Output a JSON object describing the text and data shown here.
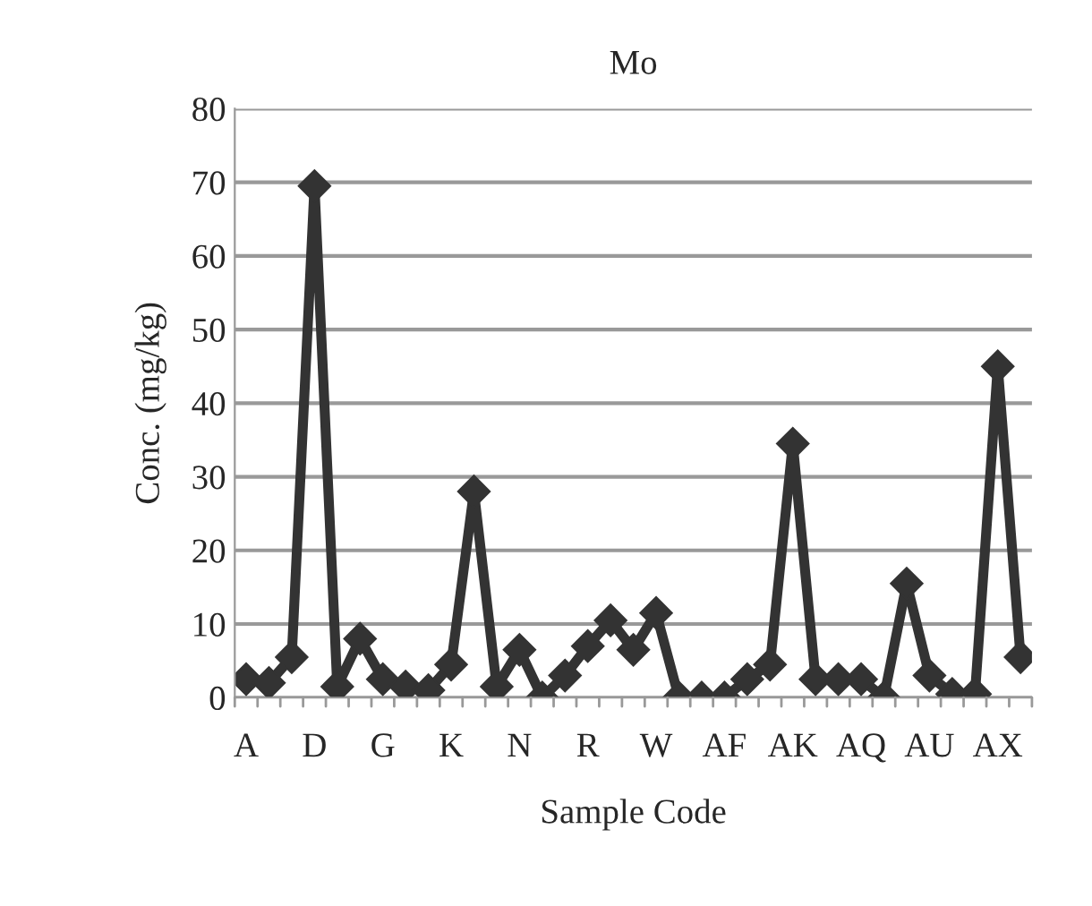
{
  "chart_data": {
    "type": "line",
    "title": "Mo",
    "xlabel": "Sample Code",
    "ylabel": "Conc. (mg/kg)",
    "categories": [
      "A",
      null,
      null,
      "D",
      null,
      null,
      "G",
      null,
      null,
      "K",
      null,
      null,
      "N",
      null,
      null,
      "R",
      null,
      null,
      "W",
      null,
      null,
      "AF",
      null,
      null,
      "AK",
      null,
      null,
      "AQ",
      null,
      null,
      "AU",
      null,
      null,
      "AX",
      null
    ],
    "series": [
      {
        "color": "#333333",
        "values": [
          2.5,
          2,
          5.5,
          69.5,
          1.5,
          8,
          2.5,
          1.5,
          1,
          4.5,
          28,
          1.5,
          6.5,
          0,
          3,
          7,
          10.5,
          6.5,
          11.5,
          0,
          0,
          0,
          2.5,
          4.5,
          34.5,
          2.5,
          2.5,
          2.5,
          0,
          15.5,
          3,
          0.5,
          0.5,
          45,
          5.5
        ]
      }
    ],
    "ylim": [
      0,
      80
    ],
    "yticks": [
      0,
      10,
      20,
      30,
      40,
      50,
      60,
      70,
      80
    ],
    "grid": "y",
    "marker": "diamond",
    "line_style": "solid",
    "legend": false
  }
}
